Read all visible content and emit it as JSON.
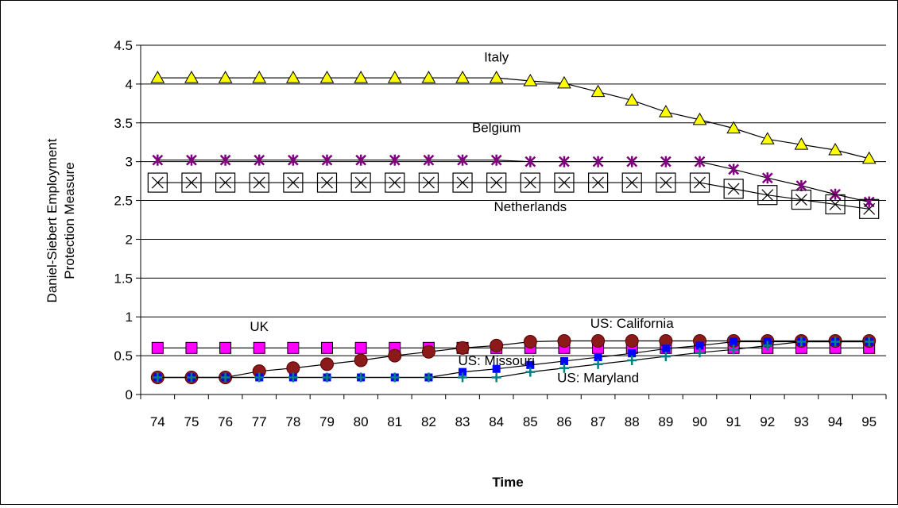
{
  "chart_data": {
    "type": "line",
    "xlabel": "Time",
    "ylabel_lines": [
      "Daniel-Siebert Employment",
      "Protection Measure"
    ],
    "x": [
      "74",
      "75",
      "76",
      "77",
      "78",
      "79",
      "80",
      "81",
      "82",
      "83",
      "84",
      "85",
      "86",
      "87",
      "88",
      "89",
      "90",
      "91",
      "92",
      "93",
      "94",
      "95"
    ],
    "ylim": [
      0,
      4.5
    ],
    "yticks": [
      "0",
      "0.5",
      "1",
      "1.5",
      "2",
      "2.5",
      "3",
      "3.5",
      "4",
      "4.5"
    ],
    "grid": "horizontal",
    "legend": "none",
    "series": [
      {
        "name": "Italy",
        "marker": "triangle",
        "color": "#FFFF00",
        "values": [
          4.08,
          4.08,
          4.08,
          4.08,
          4.08,
          4.08,
          4.08,
          4.08,
          4.08,
          4.08,
          4.08,
          4.04,
          4.01,
          3.9,
          3.79,
          3.64,
          3.54,
          3.43,
          3.29,
          3.22,
          3.15,
          3.04
        ]
      },
      {
        "name": "Belgium",
        "marker": "asterisk",
        "color": "#800080",
        "values": [
          3.02,
          3.02,
          3.02,
          3.02,
          3.02,
          3.02,
          3.02,
          3.02,
          3.02,
          3.02,
          3.02,
          3.0,
          3.0,
          3.0,
          3.0,
          3.0,
          3.0,
          2.9,
          2.79,
          2.69,
          2.58,
          2.48
        ]
      },
      {
        "name": "Netherlands",
        "marker": "box-x",
        "color": "#000000",
        "values": [
          2.73,
          2.73,
          2.73,
          2.73,
          2.73,
          2.73,
          2.73,
          2.73,
          2.73,
          2.73,
          2.73,
          2.73,
          2.73,
          2.73,
          2.73,
          2.73,
          2.73,
          2.65,
          2.57,
          2.51,
          2.45,
          2.39
        ]
      },
      {
        "name": "UK",
        "marker": "square",
        "color": "#FF00FF",
        "values": [
          0.6,
          0.6,
          0.6,
          0.6,
          0.6,
          0.6,
          0.6,
          0.6,
          0.6,
          0.6,
          0.6,
          0.6,
          0.6,
          0.6,
          0.6,
          0.6,
          0.6,
          0.6,
          0.6,
          0.6,
          0.6,
          0.6
        ]
      },
      {
        "name": "US: California",
        "marker": "circle",
        "color": "#8B1A1A",
        "values": [
          0.22,
          0.22,
          0.22,
          0.3,
          0.34,
          0.39,
          0.44,
          0.5,
          0.55,
          0.6,
          0.63,
          0.68,
          0.69,
          0.69,
          0.69,
          0.69,
          0.69,
          0.69,
          0.69,
          0.69,
          0.69,
          0.69
        ]
      },
      {
        "name": "US: Missouri",
        "marker": "small-square",
        "color": "#0000FF",
        "values": [
          0.22,
          0.22,
          0.22,
          0.22,
          0.22,
          0.22,
          0.22,
          0.22,
          0.22,
          0.29,
          0.33,
          0.38,
          0.43,
          0.48,
          0.53,
          0.59,
          0.63,
          0.68,
          0.68,
          0.68,
          0.68,
          0.68
        ]
      },
      {
        "name": "US: Maryland",
        "marker": "plus",
        "color": "#008080",
        "values": [
          0.22,
          0.22,
          0.22,
          0.22,
          0.22,
          0.22,
          0.22,
          0.22,
          0.22,
          0.22,
          0.22,
          0.29,
          0.34,
          0.39,
          0.44,
          0.49,
          0.54,
          0.58,
          0.63,
          0.68,
          0.68,
          0.68
        ]
      }
    ],
    "annotations": [
      {
        "text": "Italy",
        "x": "84",
        "y": 4.29
      },
      {
        "text": "Belgium",
        "x": "84",
        "y": 3.38
      },
      {
        "text": "Netherlands",
        "x": "85",
        "y": 2.36
      },
      {
        "text": "UK",
        "x": "77",
        "y": 0.82
      },
      {
        "text": "US: California",
        "x": "88",
        "y": 0.86
      },
      {
        "text": "US: Missouri",
        "x": "84",
        "y": 0.38
      },
      {
        "text": "US: Maryland",
        "x": "87",
        "y": 0.16
      }
    ]
  }
}
